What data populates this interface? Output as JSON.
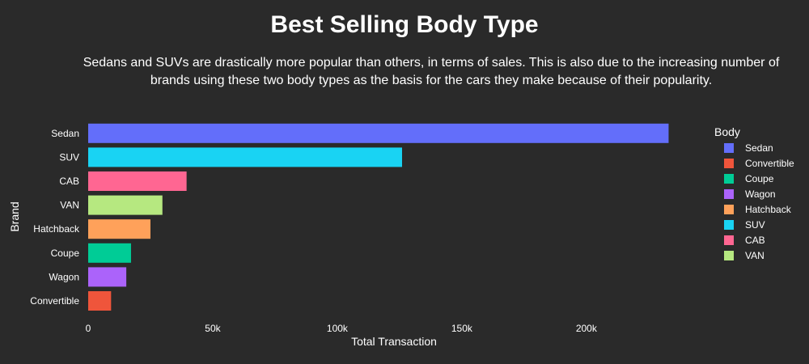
{
  "chart_data": {
    "type": "bar",
    "orientation": "horizontal",
    "title": "Best Selling Body Type",
    "subtitle": "Sedans and SUVs are drastically more popular than others, in terms of sales. This is also due to the increasing number of brands using these two body types as the basis for the cars they make because of their popularity.",
    "xlabel": "Total Transaction",
    "ylabel": "Brand",
    "xlim": [
      0,
      233500
    ],
    "x_ticks": [
      {
        "value": 0,
        "label": "0"
      },
      {
        "value": 50000,
        "label": "50k"
      },
      {
        "value": 100000,
        "label": "100k"
      },
      {
        "value": 150000,
        "label": "150k"
      },
      {
        "value": 200000,
        "label": "200k"
      }
    ],
    "categories": [
      "Sedan",
      "SUV",
      "CAB",
      "VAN",
      "Hatchback",
      "Coupe",
      "Wagon",
      "Convertible"
    ],
    "values": [
      233000,
      126000,
      39500,
      29800,
      25000,
      17200,
      15300,
      9200
    ],
    "colors": [
      "#636efa",
      "#19d3f3",
      "#ff6692",
      "#b6e880",
      "#ffa15a",
      "#00cc96",
      "#ab63fa",
      "#ef553b"
    ],
    "grid": false,
    "legend": {
      "title": "Body",
      "placement": "right",
      "items": [
        {
          "label": "Sedan",
          "color": "#636efa"
        },
        {
          "label": "Convertible",
          "color": "#ef553b"
        },
        {
          "label": "Coupe",
          "color": "#00cc96"
        },
        {
          "label": "Wagon",
          "color": "#ab63fa"
        },
        {
          "label": "Hatchback",
          "color": "#ffa15a"
        },
        {
          "label": "SUV",
          "color": "#19d3f3"
        },
        {
          "label": "CAB",
          "color": "#ff6692"
        },
        {
          "label": "VAN",
          "color": "#b6e880"
        }
      ]
    }
  }
}
